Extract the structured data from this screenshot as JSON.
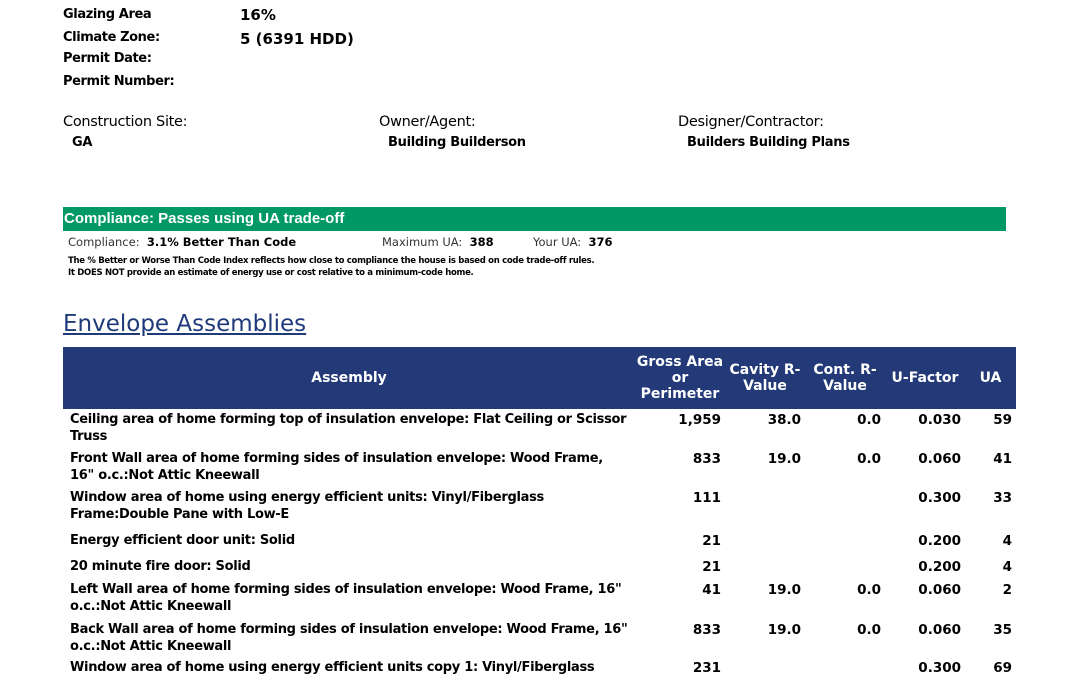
{
  "info": [
    {
      "label": "Glazing Area",
      "value": "16%"
    },
    {
      "label": "Climate Zone:",
      "value": "5  (6391 HDD)"
    },
    {
      "label": "Permit Date:",
      "value": ""
    },
    {
      "label": "Permit Number:",
      "value": ""
    }
  ],
  "parties": [
    {
      "label": "Construction Site:",
      "value": "GA"
    },
    {
      "label": "Owner/Agent:",
      "value": "Building Builderson"
    },
    {
      "label": "Designer/Contractor:",
      "value": "Builders Building Plans"
    }
  ],
  "compliance": {
    "banner": "Compliance: Passes using UA trade-off",
    "compliance_label": "Compliance:",
    "compliance_value": "3.1% Better Than Code",
    "max_ua_label": "Maximum UA:",
    "max_ua_value": "388",
    "your_ua_label": "Your UA:",
    "your_ua_value": "376",
    "banner_color": "#009966",
    "note1": "The % Better or Worse Than Code Index reflects  how close to compliance the house is based on code trade-off rules.",
    "note2": "It DOES NOT provide an estimate of energy use or cost relative to a  minimum-code home."
  },
  "envelope": {
    "title": "Envelope Assemblies",
    "header_color": "#243a78",
    "columns": [
      "Assembly",
      "Gross Area or Perimeter",
      "Cavity R-Value",
      "Cont. R-Value",
      "U-Factor",
      "UA"
    ],
    "rows": [
      [
        "Ceiling area of home forming top of insulation envelope: Flat Ceiling or Scissor Truss",
        "1,959",
        "38.0",
        "0.0",
        "0.030",
        "59"
      ],
      [
        "Front Wall area of home forming sides of insulation envelope: Wood Frame, 16\" o.c.:Not Attic Kneewall",
        "833",
        "19.0",
        "0.0",
        "0.060",
        "41"
      ],
      [
        "Window area of home using energy efficient units: Vinyl/Fiberglass Frame:Double Pane with Low-E",
        "111",
        "",
        "",
        "0.300",
        "33"
      ],
      [
        "Energy efficient door unit: Solid",
        "21",
        "",
        "",
        "0.200",
        "4"
      ],
      [
        "20 minute fire door: Solid",
        "21",
        "",
        "",
        "0.200",
        "4"
      ],
      [
        "Left Wall area of home forming sides of insulation envelope: Wood Frame, 16\" o.c.:Not Attic Kneewall",
        "41",
        "19.0",
        "0.0",
        "0.060",
        "2"
      ],
      [
        "Back Wall area of home forming sides of insulation envelope: Wood Frame, 16\" o.c.:Not Attic Kneewall",
        "833",
        "19.0",
        "0.0",
        "0.060",
        "35"
      ],
      [
        "Window area of home using energy efficient units copy 1: Vinyl/Fiberglass",
        "231",
        "",
        "",
        "0.300",
        "69"
      ]
    ]
  }
}
